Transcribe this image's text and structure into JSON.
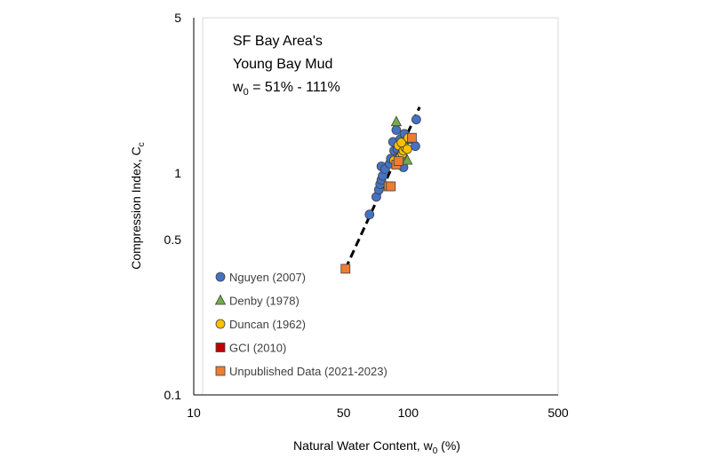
{
  "chart_data": {
    "type": "scatter",
    "title": "",
    "xlabel_main": "Natural Water Content, w",
    "xlabel_sub": "0",
    "xlabel_tail": " (%)",
    "ylabel_main": "Compression Index, C",
    "ylabel_sub": "c",
    "x_scale": "log",
    "y_scale": "log",
    "xlim": [
      10,
      500
    ],
    "ylim": [
      0.1,
      5
    ],
    "x_ticks": [
      "10",
      "50",
      "100",
      "500"
    ],
    "y_ticks": [
      "0.1",
      "0.5",
      "1",
      "5"
    ],
    "x_tick_values": [
      10,
      50,
      100,
      500
    ],
    "y_tick_values": [
      0.1,
      0.5,
      1,
      5
    ],
    "grid": false,
    "legend_position": "bottom-left",
    "annotation": {
      "line1": "SF Bay Area's",
      "line2": "Young Bay Mud",
      "line3_main": "w",
      "line3_sub": "0",
      "line3_tail": " = 51% - 111%"
    },
    "series": [
      {
        "name": "Nguyen (2007)",
        "marker": "circle",
        "color": "#4472C4",
        "points": [
          [
            66,
            0.65
          ],
          [
            71,
            0.78
          ],
          [
            73,
            0.84
          ],
          [
            74,
            0.89
          ],
          [
            75,
            0.93
          ],
          [
            76,
            0.97
          ],
          [
            75,
            1.07
          ],
          [
            78,
            1.04
          ],
          [
            82,
            1.1
          ],
          [
            83,
            1.16
          ],
          [
            86,
            1.26
          ],
          [
            85,
            1.38
          ],
          [
            89,
            1.28
          ],
          [
            92,
            1.2
          ],
          [
            95,
            1.06
          ],
          [
            92,
            1.42
          ],
          [
            96,
            1.5
          ],
          [
            101,
            1.42
          ],
          [
            108,
            1.32
          ],
          [
            109,
            1.74
          ],
          [
            88,
            1.56
          ]
        ]
      },
      {
        "name": "Denby (1978)",
        "marker": "triangle",
        "color": "#70AD47",
        "points": [
          [
            88,
            1.7
          ],
          [
            99,
            1.14
          ],
          [
            96,
            1.36
          ],
          [
            91,
            1.22
          ]
        ]
      },
      {
        "name": "Duncan (1962)",
        "marker": "circle",
        "color": "#FFC000",
        "points": [
          [
            86,
            1.14
          ],
          [
            90,
            1.33
          ],
          [
            92,
            1.18
          ],
          [
            94,
            1.22
          ],
          [
            95,
            1.26
          ],
          [
            97,
            1.3
          ],
          [
            99,
            1.28
          ],
          [
            89,
            1.1
          ],
          [
            93,
            1.37
          ],
          [
            100,
            1.44
          ]
        ]
      },
      {
        "name": "GCI (2010)",
        "marker": "square",
        "color": "#C00000",
        "points": []
      },
      {
        "name": "Unpublished Data (2021-2023)",
        "marker": "square",
        "color": "#ED7D31",
        "points": [
          [
            51,
            0.37
          ],
          [
            81,
            0.87
          ],
          [
            83,
            0.87
          ],
          [
            104,
            1.44
          ],
          [
            88,
            1.09
          ],
          [
            90,
            1.13
          ]
        ]
      }
    ],
    "trendline": {
      "style": "dashed",
      "color": "#000000",
      "points": [
        [
          51,
          0.37
        ],
        [
          113,
          1.98
        ]
      ]
    }
  }
}
